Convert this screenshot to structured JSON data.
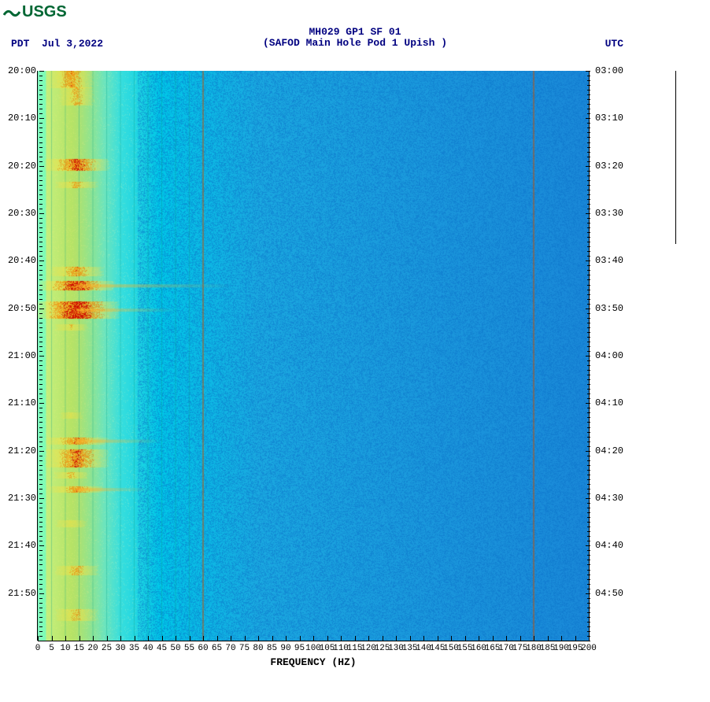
{
  "logo_text": "USGS",
  "header": {
    "title1": "MH029 GP1 SF 01",
    "title2": "(SAFOD Main Hole Pod 1 Upish )",
    "left_tz": "PDT",
    "date": "Jul 3,2022",
    "right_tz": "UTC"
  },
  "spectrogram": {
    "type": "heatmap",
    "xlabel": "FREQUENCY (HZ)",
    "xlim": [
      0,
      200
    ],
    "xtick_step": 5,
    "y_left_ticks": [
      "20:00",
      "20:10",
      "20:20",
      "20:30",
      "20:40",
      "20:50",
      "21:00",
      "21:10",
      "21:20",
      "21:30",
      "21:40",
      "21:50"
    ],
    "y_right_ticks": [
      "03:00",
      "03:10",
      "03:20",
      "03:30",
      "03:40",
      "03:50",
      "04:00",
      "04:10",
      "04:20",
      "04:30",
      "04:40",
      "04:50"
    ],
    "minor_per_major": 10,
    "background_gradient": {
      "stops": [
        {
          "pct": 0,
          "color": "#7dffc0"
        },
        {
          "pct": 6,
          "color": "#78f090"
        },
        {
          "pct": 12,
          "color": "#50e8d8"
        },
        {
          "pct": 22,
          "color": "#00c8e8"
        },
        {
          "pct": 40,
          "color": "#1aa8e0"
        },
        {
          "pct": 100,
          "color": "#1a88d8"
        }
      ]
    },
    "noise_color": "#0a70c8",
    "vertical_lines": [
      {
        "hz": 60,
        "color": "#c85000",
        "width": 1
      },
      {
        "hz": 180,
        "color": "#c85000",
        "width": 1
      }
    ],
    "grid_lines_hz": [
      5,
      10,
      15,
      20,
      25,
      30,
      35,
      40,
      45,
      50,
      55
    ],
    "grid_color": "#08a088",
    "low_freq_band": {
      "hz_start": 3,
      "hz_end": 30,
      "yellow": "#ffe040",
      "orange": "#ff8800",
      "red": "#d01000"
    },
    "events": [
      {
        "t_frac_start": 0.0,
        "t_frac_end": 0.03,
        "intensity": 0.7,
        "hz_center": 12,
        "hz_spread": 10
      },
      {
        "t_frac_start": 0.03,
        "t_frac_end": 0.06,
        "intensity": 0.6,
        "hz_center": 14,
        "hz_spread": 8
      },
      {
        "t_frac_start": 0.155,
        "t_frac_end": 0.175,
        "intensity": 0.85,
        "hz_center": 14,
        "hz_spread": 14
      },
      {
        "t_frac_start": 0.195,
        "t_frac_end": 0.205,
        "intensity": 0.6,
        "hz_center": 14,
        "hz_spread": 10
      },
      {
        "t_frac_start": 0.345,
        "t_frac_end": 0.36,
        "intensity": 0.7,
        "hz_center": 14,
        "hz_spread": 12
      },
      {
        "t_frac_start": 0.37,
        "t_frac_end": 0.385,
        "intensity": 0.95,
        "hz_center": 14,
        "hz_spread": 16,
        "streak_to_hz": 70
      },
      {
        "t_frac_start": 0.405,
        "t_frac_end": 0.435,
        "intensity": 1.0,
        "hz_center": 14,
        "hz_spread": 18,
        "streak_to_hz": 50
      },
      {
        "t_frac_start": 0.445,
        "t_frac_end": 0.455,
        "intensity": 0.5,
        "hz_center": 12,
        "hz_spread": 8
      },
      {
        "t_frac_start": 0.6,
        "t_frac_end": 0.61,
        "intensity": 0.4,
        "hz_center": 12,
        "hz_spread": 6
      },
      {
        "t_frac_start": 0.645,
        "t_frac_end": 0.655,
        "intensity": 0.75,
        "hz_center": 14,
        "hz_spread": 14,
        "streak_to_hz": 45
      },
      {
        "t_frac_start": 0.665,
        "t_frac_end": 0.695,
        "intensity": 0.8,
        "hz_center": 14,
        "hz_spread": 14
      },
      {
        "t_frac_start": 0.705,
        "t_frac_end": 0.715,
        "intensity": 0.55,
        "hz_center": 12,
        "hz_spread": 8
      },
      {
        "t_frac_start": 0.73,
        "t_frac_end": 0.74,
        "intensity": 0.7,
        "hz_center": 14,
        "hz_spread": 12,
        "streak_to_hz": 40
      },
      {
        "t_frac_start": 0.79,
        "t_frac_end": 0.8,
        "intensity": 0.45,
        "hz_center": 12,
        "hz_spread": 8
      },
      {
        "t_frac_start": 0.87,
        "t_frac_end": 0.885,
        "intensity": 0.6,
        "hz_center": 14,
        "hz_spread": 10
      },
      {
        "t_frac_start": 0.945,
        "t_frac_end": 0.965,
        "intensity": 0.55,
        "hz_center": 14,
        "hz_spread": 10
      }
    ]
  },
  "fonts": {
    "tick_fontsize": 12,
    "label_fontsize": 13
  }
}
